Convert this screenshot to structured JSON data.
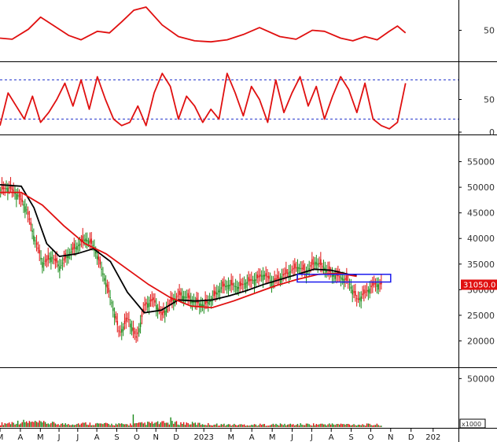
{
  "chart_data": {
    "type": "line",
    "panels": [
      {
        "id": "oscillator-1",
        "y_range": [
          0,
          100
        ],
        "y_ticks": [
          "50"
        ],
        "series": [
          {
            "color": "#e01010",
            "x": [
              0,
              0.03,
              0.07,
              0.1,
              0.14,
              0.17,
              0.2,
              0.24,
              0.27,
              0.3,
              0.33,
              0.36,
              0.4,
              0.44,
              0.48,
              0.52,
              0.56,
              0.6,
              0.64,
              0.69,
              0.73,
              0.77,
              0.8,
              0.84,
              0.87,
              0.9,
              0.93,
              0.96,
              0.98,
              1.0
            ],
            "y": [
              35,
              33,
              52,
              75,
              55,
              40,
              32,
              48,
              45,
              66,
              88,
              94,
              60,
              38,
              30,
              28,
              32,
              42,
              55,
              38,
              33,
              50,
              48,
              35,
              30,
              38,
              32,
              48,
              58,
              45
            ]
          }
        ]
      },
      {
        "id": "oscillator-2",
        "y_range": [
          0,
          100
        ],
        "y_ticks": [
          "50",
          "0"
        ],
        "ref_levels": [
          80,
          20
        ],
        "series": [
          {
            "color": "#e01010",
            "x": [
              0,
              0.02,
              0.04,
              0.06,
              0.08,
              0.1,
              0.12,
              0.14,
              0.16,
              0.18,
              0.2,
              0.22,
              0.24,
              0.26,
              0.28,
              0.3,
              0.32,
              0.34,
              0.36,
              0.38,
              0.4,
              0.42,
              0.44,
              0.46,
              0.48,
              0.5,
              0.52,
              0.54,
              0.56,
              0.58,
              0.6,
              0.62,
              0.64,
              0.66,
              0.68,
              0.7,
              0.72,
              0.74,
              0.76,
              0.78,
              0.8,
              0.82,
              0.84,
              0.86,
              0.88,
              0.9,
              0.92,
              0.94,
              0.96,
              0.98,
              1.0
            ],
            "y": [
              10,
              60,
              40,
              20,
              55,
              15,
              30,
              50,
              75,
              40,
              80,
              35,
              85,
              50,
              20,
              10,
              15,
              40,
              10,
              60,
              90,
              70,
              20,
              55,
              40,
              15,
              35,
              20,
              90,
              60,
              25,
              70,
              50,
              15,
              80,
              30,
              60,
              85,
              40,
              70,
              20,
              55,
              85,
              65,
              30,
              75,
              20,
              10,
              5,
              15,
              75
            ]
          }
        ]
      },
      {
        "id": "price",
        "y_range": [
          15000,
          60000
        ],
        "y_ticks": [
          "55000",
          "50000",
          "45000",
          "40000",
          "35000",
          "30000",
          "25000",
          "20000"
        ],
        "current_label": "31050.0",
        "ohlc_x_range": [
          0.0,
          0.9
        ],
        "series": [
          {
            "name": "price-close",
            "color": "#000000",
            "x": [
              0,
              0.02,
              0.04,
              0.06,
              0.08,
              0.1,
              0.12,
              0.14,
              0.16,
              0.18,
              0.2,
              0.22,
              0.24,
              0.26,
              0.28,
              0.3,
              0.32,
              0.34,
              0.36,
              0.38,
              0.4,
              0.42,
              0.44,
              0.46,
              0.48,
              0.5,
              0.52,
              0.54,
              0.56,
              0.58,
              0.6,
              0.62,
              0.64,
              0.66,
              0.68,
              0.7,
              0.72,
              0.74,
              0.76,
              0.78,
              0.8,
              0.82,
              0.84,
              0.86,
              0.88,
              0.9
            ],
            "y": [
              49500,
              50000,
              48500,
              46000,
              40000,
              35000,
              36500,
              34500,
              37000,
              38500,
              40000,
              38500,
              33500,
              28000,
              21500,
              24500,
              20500,
              27000,
              28000,
              25000,
              27500,
              29000,
              28500,
              27500,
              27000,
              28500,
              30500,
              31000,
              30500,
              31500,
              32000,
              33000,
              31500,
              32500,
              33500,
              34500,
              33500,
              35500,
              34500,
              33000,
              32500,
              31500,
              28000,
              29500,
              31050,
              31050
            ]
          },
          {
            "name": "ma-short",
            "color": "#000000",
            "x": [
              0,
              0.05,
              0.08,
              0.11,
              0.14,
              0.18,
              0.22,
              0.26,
              0.3,
              0.34,
              0.38,
              0.42,
              0.46,
              0.5,
              0.54,
              0.58,
              0.62,
              0.66,
              0.7,
              0.74,
              0.78,
              0.82,
              0.84
            ],
            "y": [
              50500,
              50200,
              46000,
              39000,
              36500,
              37000,
              38000,
              35500,
              29500,
              25500,
              26000,
              28000,
              27800,
              28000,
              28800,
              29800,
              31000,
              32000,
              33000,
              34000,
              33800,
              33000,
              32800
            ]
          },
          {
            "name": "ma-long",
            "color": "#e01010",
            "x": [
              0,
              0.05,
              0.1,
              0.15,
              0.2,
              0.25,
              0.3,
              0.35,
              0.4,
              0.45,
              0.5,
              0.55,
              0.6,
              0.65,
              0.7,
              0.75,
              0.8,
              0.84
            ],
            "y": [
              49000,
              49000,
              46500,
              42500,
              39000,
              37000,
              34000,
              31000,
              28500,
              26800,
              26500,
              27800,
              29300,
              30800,
              32000,
              33000,
              33200,
              32600
            ]
          }
        ],
        "annotations": [
          {
            "type": "rect",
            "x0": 0.7,
            "x1": 0.92,
            "y0": 31500,
            "y1": 33000,
            "color": "#1a1aee"
          }
        ]
      },
      {
        "id": "volume",
        "y_range": [
          0,
          60000
        ],
        "y_ticks": [
          "50000"
        ],
        "unit_label": "x1000",
        "series": [
          {
            "name": "volume",
            "color": "#1a8a1a",
            "x": [
              0,
              0.05,
              0.1,
              0.15,
              0.2,
              0.25,
              0.3,
              0.35,
              0.4,
              0.45,
              0.5,
              0.55,
              0.6,
              0.65,
              0.7,
              0.75,
              0.8,
              0.85,
              0.9
            ],
            "y": [
              5000,
              8000,
              6500,
              4500,
              5500,
              4500,
              4000,
              6000,
              6500,
              5500,
              4000,
              3500,
              3500,
              3800,
              4000,
              4200,
              4200,
              3800,
              3500
            ]
          }
        ]
      }
    ],
    "x_ticks": [
      {
        "label": "M",
        "x": 0.0
      },
      {
        "label": "A",
        "x": 0.048
      },
      {
        "label": "M",
        "x": 0.095
      },
      {
        "label": "J",
        "x": 0.139
      },
      {
        "label": "J",
        "x": 0.183
      },
      {
        "label": "A",
        "x": 0.228
      },
      {
        "label": "S",
        "x": 0.275
      },
      {
        "label": "O",
        "x": 0.322
      },
      {
        "label": "N",
        "x": 0.367
      },
      {
        "label": "D",
        "x": 0.415
      },
      {
        "label": "2023",
        "x": 0.48
      },
      {
        "label": "M",
        "x": 0.544
      },
      {
        "label": "A",
        "x": 0.593
      },
      {
        "label": "M",
        "x": 0.641
      },
      {
        "label": "J",
        "x": 0.688
      },
      {
        "label": "J",
        "x": 0.734
      },
      {
        "label": "A",
        "x": 0.78
      },
      {
        "label": "S",
        "x": 0.827
      },
      {
        "label": "O",
        "x": 0.873
      },
      {
        "label": "N",
        "x": 0.92
      },
      {
        "label": "D",
        "x": 0.968
      },
      {
        "label": "202",
        "x": 1.02
      }
    ]
  }
}
